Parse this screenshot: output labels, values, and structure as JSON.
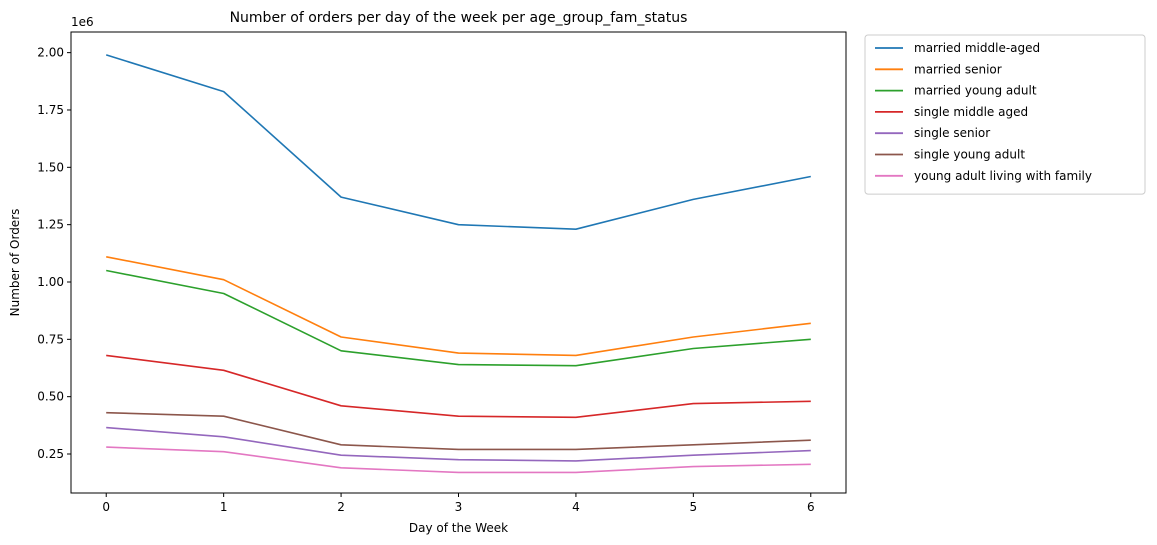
{
  "chart_data": {
    "type": "line",
    "title": "Number of orders per day of the week per age_group_fam_status",
    "xlabel": "Day of the Week",
    "ylabel": "Number of Orders",
    "offset_label": "1e6",
    "x": [
      0,
      1,
      2,
      3,
      4,
      5,
      6
    ],
    "xlim": [
      -0.3,
      6.3
    ],
    "ylim": [
      0.08,
      2.09
    ],
    "yticks": [
      0.25,
      0.5,
      0.75,
      1.0,
      1.25,
      1.5,
      1.75,
      2.0
    ],
    "ytick_labels": [
      "0.25",
      "0.50",
      "0.75",
      "1.00",
      "1.25",
      "1.50",
      "1.75",
      "2.00"
    ],
    "xtick_labels": [
      "0",
      "1",
      "2",
      "3",
      "4",
      "5",
      "6"
    ],
    "grid": false,
    "legend_position": "outside-right",
    "series": [
      {
        "name": "married middle-aged",
        "color": "#1f77b4",
        "values": [
          1.99,
          1.83,
          1.37,
          1.25,
          1.23,
          1.36,
          1.46
        ]
      },
      {
        "name": "married senior",
        "color": "#ff7f0e",
        "values": [
          1.11,
          1.01,
          0.76,
          0.69,
          0.68,
          0.76,
          0.82
        ]
      },
      {
        "name": "married young adult",
        "color": "#2ca02c",
        "values": [
          1.05,
          0.95,
          0.7,
          0.64,
          0.635,
          0.71,
          0.75
        ]
      },
      {
        "name": "single middle aged",
        "color": "#d62728",
        "values": [
          0.68,
          0.615,
          0.46,
          0.415,
          0.41,
          0.47,
          0.48
        ]
      },
      {
        "name": "single senior",
        "color": "#9467bd",
        "values": [
          0.365,
          0.325,
          0.245,
          0.225,
          0.22,
          0.245,
          0.265
        ]
      },
      {
        "name": "single young adult",
        "color": "#8c564b",
        "values": [
          0.43,
          0.415,
          0.29,
          0.27,
          0.27,
          0.29,
          0.31
        ]
      },
      {
        "name": "young adult living with family",
        "color": "#e377c2",
        "values": [
          0.28,
          0.26,
          0.19,
          0.17,
          0.17,
          0.195,
          0.205
        ]
      }
    ]
  }
}
